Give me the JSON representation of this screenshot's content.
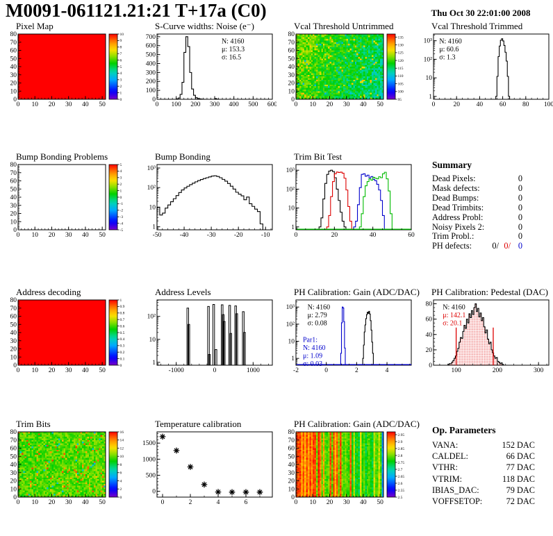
{
  "header": {
    "title": "M0091-061121.21:21 T+17a (C0)",
    "date": "Thu Oct 30 22:01:00 2008"
  },
  "summary": {
    "title": "Summary",
    "rows": [
      {
        "label": "Dead Pixels:",
        "value": "0"
      },
      {
        "label": "Mask defects:",
        "value": "0"
      },
      {
        "label": "Dead Bumps:",
        "value": "0"
      },
      {
        "label": "Dead Trimbits:",
        "value": "0"
      },
      {
        "label": "Address Probl:",
        "value": "0"
      },
      {
        "label": "Noisy Pixels 2:",
        "value": "0"
      },
      {
        "label": "Trim Probl.:",
        "value": "0"
      },
      {
        "label": "PH defects:",
        "values": [
          {
            "text": "0/",
            "color": "#000000"
          },
          {
            "text": "0/",
            "color": "#dd0000"
          },
          {
            "text": "0",
            "color": "#0000cc"
          }
        ]
      }
    ]
  },
  "op_parameters": {
    "title": "Op. Parameters",
    "rows": [
      {
        "label": "VANA:",
        "value": "152 DAC"
      },
      {
        "label": "CALDEL:",
        "value": "66 DAC"
      },
      {
        "label": "VTHR:",
        "value": "77 DAC"
      },
      {
        "label": "VTRIM:",
        "value": "118 DAC"
      },
      {
        "label": "IBIAS_DAC:",
        "value": "79 DAC"
      },
      {
        "label": "VOFFSETOP:",
        "value": "72 DAC"
      }
    ]
  },
  "chart_data": [
    {
      "type": "heatmap",
      "title": "Pixel Map",
      "pattern": {
        "kind": "uniform",
        "value": 1.0
      },
      "x": {
        "min": 0,
        "max": 52,
        "ticks": [
          0,
          10,
          20,
          30,
          40,
          50
        ],
        "minor": 2
      },
      "y": {
        "min": 0,
        "max": 80,
        "ticks": [
          0,
          10,
          20,
          30,
          40,
          50,
          60,
          70,
          80
        ],
        "minor": 2
      },
      "colorbar": {
        "min": 0,
        "max": 10,
        "ticks": [
          0,
          1,
          2,
          3,
          4,
          5,
          6,
          7,
          8,
          9,
          10
        ],
        "labels": [
          "0",
          "1",
          "2",
          "3",
          "4",
          "5",
          "6",
          "7",
          "8",
          "9",
          "10"
        ]
      }
    },
    {
      "type": "hist",
      "title": "S-Curve widths: Noise (e⁻)",
      "scale": "linear",
      "x": {
        "min": 0,
        "max": 600,
        "ticks": [
          0,
          100,
          200,
          300,
          400,
          500,
          600
        ],
        "minor": 20
      },
      "y": {
        "min": 0,
        "max": 730,
        "ticks": [
          0,
          100,
          200,
          300,
          400,
          500,
          600,
          700
        ],
        "minor": 20
      },
      "series": [
        {
          "color": "#000000",
          "start": 0,
          "width": 10,
          "counts": [
            0,
            0,
            0,
            0,
            0,
            0,
            0,
            0,
            0,
            0,
            4,
            14,
            55,
            190,
            525,
            700,
            590,
            300,
            115,
            45,
            18,
            8,
            4,
            2,
            1,
            0,
            0,
            0,
            0,
            0,
            8,
            2,
            0,
            0,
            0,
            0,
            0,
            0,
            0,
            0,
            0,
            0,
            0,
            0,
            0,
            0,
            0,
            0,
            0,
            0,
            0,
            0,
            0,
            0,
            0,
            0,
            0,
            0,
            0,
            0
          ]
        }
      ],
      "stats": [
        {
          "fx": 0.56,
          "fy": 0.06,
          "color": "#000000",
          "lines": [
            "N: 4160",
            "μ: 153.3",
            "σ: 16.5"
          ]
        }
      ]
    },
    {
      "type": "heatmap",
      "title": "Vcal Threshold Untrimmed",
      "pattern": {
        "kind": "noise",
        "seed": 42,
        "mean": 0.6,
        "spread": 0.09,
        "gx": -0.16,
        "gyTop": 0.05,
        "speckleProb": 0.05,
        "speckleLo": 0.7,
        "speckleHi": 0.82,
        "blueProb": 0.02,
        "blueVal": 0.34
      },
      "x": {
        "min": 0,
        "max": 52,
        "ticks": [
          0,
          10,
          20,
          30,
          40,
          50
        ],
        "minor": 2
      },
      "y": {
        "min": 0,
        "max": 80,
        "ticks": [
          0,
          10,
          20,
          30,
          40,
          50,
          60,
          70,
          80
        ],
        "minor": 2
      },
      "colorbar": {
        "min": 95,
        "max": 137,
        "ticks": [
          95,
          100,
          105,
          110,
          115,
          120,
          125,
          130,
          135
        ],
        "labels": [
          "95",
          "100",
          "105",
          "110",
          "115",
          "120",
          "125",
          "130",
          "135"
        ]
      }
    },
    {
      "type": "hist",
      "title": "Vcal Threshold Trimmed",
      "scale": "log",
      "x": {
        "min": 0,
        "max": 100,
        "ticks": [
          0,
          20,
          40,
          60,
          80,
          100
        ],
        "minor": 5
      },
      "y": {
        "min": 0.7,
        "max": 2300,
        "ticks": [
          1,
          10,
          100,
          1000
        ],
        "ticklabels": [
          "1",
          "10",
          "10²",
          "10³"
        ]
      },
      "series": [
        {
          "color": "#000000",
          "start": 54,
          "width": 1,
          "counts": [
            1,
            12,
            140,
            520,
            1050,
            1280,
            980,
            560,
            240,
            80,
            12,
            1
          ]
        }
      ],
      "stats": [
        {
          "fx": 0.05,
          "fy": 0.06,
          "color": "#000000",
          "lines": [
            "N: 4160",
            "μ: 60.6",
            "σ:  1.3"
          ]
        }
      ]
    },
    {
      "type": "heatmap",
      "title": "Bump Bonding Problems",
      "pattern": {
        "kind": "empty"
      },
      "x": {
        "min": 0,
        "max": 52,
        "ticks": [
          0,
          10,
          20,
          30,
          40,
          50
        ],
        "minor": 2
      },
      "y": {
        "min": 0,
        "max": 80,
        "ticks": [
          0,
          10,
          20,
          30,
          40,
          50,
          60,
          70,
          80
        ],
        "minor": 2
      },
      "colorbar": {
        "min": -5,
        "max": 5,
        "ticks": [
          -5,
          -4,
          -3,
          -2,
          -1,
          0,
          1,
          2,
          3,
          4,
          5
        ],
        "labels": [
          "-5",
          "-4",
          "-3",
          "-2",
          "-1",
          "0",
          "1",
          "2",
          "3",
          "4",
          "5"
        ]
      }
    },
    {
      "type": "hist",
      "title": "Bump Bonding",
      "scale": "log",
      "x": {
        "min": -50,
        "max": -7.5,
        "ticks": [
          -50,
          -40,
          -30,
          -20,
          -10
        ],
        "minor": 2
      },
      "y": {
        "min": 0.7,
        "max": 1500,
        "ticks": [
          1,
          10,
          100,
          1000
        ],
        "ticklabels": [
          "1",
          "10",
          "10²",
          "10³"
        ]
      },
      "series": [
        {
          "color": "#000000",
          "start": -50,
          "width": 1,
          "counts": [
            10,
            4,
            5,
            9,
            13,
            19,
            27,
            39,
            56,
            76,
            96,
            117,
            142,
            168,
            197,
            228,
            258,
            288,
            318,
            352,
            388,
            400,
            368,
            318,
            262,
            212,
            162,
            118,
            84,
            58,
            46,
            38,
            24,
            33,
            15,
            11,
            8,
            6,
            1.4,
            0
          ]
        }
      ]
    },
    {
      "type": "hist",
      "title": "Trim Bit Test",
      "scale": "log",
      "x": {
        "min": 0,
        "max": 60,
        "ticks": [
          0,
          20,
          40,
          60
        ],
        "minor": 5
      },
      "y": {
        "min": 0.7,
        "max": 2000,
        "ticks": [
          1,
          10,
          100,
          1000
        ],
        "ticklabels": [
          "1",
          "10",
          "10²",
          "10³"
        ]
      },
      "baseline": "#00bb00",
      "series": [
        {
          "color": "#000000",
          "start": 12,
          "width": 1,
          "counts": [
            1,
            3,
            30,
            200,
            600,
            900,
            1000,
            850,
            400,
            100,
            25,
            6,
            2,
            1
          ]
        },
        {
          "color": "#dd0000",
          "start": 16,
          "width": 1,
          "counts": [
            1,
            4,
            40,
            250,
            650,
            800,
            760,
            790,
            700,
            380,
            90,
            12,
            2
          ]
        },
        {
          "color": "#0000cc",
          "start": 30,
          "width": 1,
          "counts": [
            1,
            2,
            15,
            120,
            600,
            650,
            480,
            550,
            400,
            460,
            330,
            280,
            180,
            90,
            25,
            4
          ]
        },
        {
          "color": "#00bb00",
          "start": 33,
          "width": 1,
          "counts": [
            1,
            5,
            40,
            150,
            250,
            350,
            300,
            420,
            380,
            350,
            450,
            400,
            650,
            780,
            350,
            80,
            5
          ]
        }
      ]
    },
    {
      "type": "heatmap",
      "title": "Address decoding",
      "pattern": {
        "kind": "uniform",
        "value": 1.0
      },
      "x": {
        "min": 0,
        "max": 52,
        "ticks": [
          0,
          10,
          20,
          30,
          40,
          50
        ],
        "minor": 2
      },
      "y": {
        "min": 0,
        "max": 80,
        "ticks": [
          0,
          10,
          20,
          30,
          40,
          50,
          60,
          70,
          80
        ],
        "minor": 2
      },
      "colorbar": {
        "min": 0,
        "max": 1,
        "ticks": [
          0,
          0.1,
          0.2,
          0.3,
          0.4,
          0.5,
          0.6,
          0.7,
          0.8,
          0.9,
          1
        ],
        "labels": [
          "0",
          "0.1",
          "0.2",
          "0.3",
          "0.4",
          "0.5",
          "0.6",
          "0.7",
          "0.8",
          "0.9",
          "1"
        ]
      }
    },
    {
      "type": "spikes",
      "title": "Address Levels",
      "scale": "log",
      "x": {
        "min": -1500,
        "max": 1500,
        "ticks": [
          -1000,
          0,
          1000
        ],
        "minor": 200
      },
      "y": {
        "min": 0.75,
        "max": 520,
        "ticks": [
          1,
          10,
          100
        ],
        "ticklabels": [
          "1",
          "10",
          "10²"
        ]
      },
      "spikes": [
        [
          -700,
          230
        ],
        [
          -672,
          45
        ],
        [
          -160,
          270
        ],
        [
          -138,
          2.2
        ],
        [
          -25,
          330
        ],
        [
          35,
          3.6
        ],
        [
          195,
          320
        ],
        [
          222,
          120
        ],
        [
          250,
          60
        ],
        [
          390,
          300
        ],
        [
          420,
          18
        ],
        [
          545,
          285
        ],
        [
          575,
          130
        ],
        [
          745,
          160
        ],
        [
          775,
          20
        ]
      ]
    },
    {
      "type": "hist",
      "title": "PH Calibration: Gain (ADC/DAC)",
      "scale": "log",
      "x": {
        "min": -2,
        "max": 5.6,
        "ticks": [
          -2,
          0,
          2,
          4
        ],
        "minor": 0.5
      },
      "y": {
        "min": 0.4,
        "max": 2600,
        "ticks": [
          1,
          10,
          100,
          1000
        ],
        "ticklabels": [
          "1",
          "10",
          "10²",
          "10³"
        ]
      },
      "baseline": "#0000cc",
      "series": [
        {
          "color": "#000000",
          "start": 2.4,
          "width": 0.05,
          "counts": [
            1,
            6,
            35,
            90,
            210,
            360,
            500,
            430,
            560,
            390,
            160,
            45,
            9,
            2
          ]
        },
        {
          "color": "#0000cc",
          "start": 0.95,
          "width": 0.05,
          "counts": [
            2,
            120,
            1000,
            880,
            140,
            4
          ]
        }
      ],
      "stats": [
        {
          "fx": 0.1,
          "fy": 0.06,
          "color": "#000000",
          "lines": [
            "N: 4160",
            "μ: 2.79",
            "σ: 0.08"
          ]
        },
        {
          "fx": 0.06,
          "fy": 0.56,
          "color": "#0000cc",
          "lines": [
            "Par1:",
            "N: 4160",
            "μ: 1.09",
            "σ: 0.03"
          ]
        }
      ]
    },
    {
      "type": "hist",
      "title": "PH Calibration: Pedestal (DAC)",
      "scale": "linear",
      "x": {
        "min": 45,
        "max": 325,
        "ticks": [
          100,
          200,
          300
        ],
        "minor": 20
      },
      "y": {
        "min": 0,
        "max": 85,
        "ticks": [
          0,
          20,
          40,
          60,
          80
        ],
        "minor": 5
      },
      "fill": "dots",
      "vlines": [
        {
          "x": 100,
          "y": 49,
          "color": "#dd0000"
        },
        {
          "x": 190,
          "y": 49,
          "color": "#dd0000"
        }
      ],
      "series": [
        {
          "color": "#000000",
          "start": 80,
          "width": 3,
          "counts": [
            1,
            2,
            2,
            4,
            6,
            9,
            12,
            18,
            22,
            30,
            36,
            35,
            44,
            52,
            48,
            60,
            55,
            67,
            62,
            71,
            66,
            75,
            80,
            70,
            74,
            63,
            68,
            58,
            62,
            50,
            42,
            46,
            34,
            28,
            30,
            20,
            16,
            12,
            9,
            10,
            5,
            4,
            2,
            3,
            1
          ]
        }
      ],
      "stats": [
        {
          "fx": 0.08,
          "fy": 0.06,
          "lines": [
            {
              "text": "N: 4160",
              "color": "#000000"
            },
            {
              "text": "μ: 142.1",
              "color": "#dd0000"
            },
            {
              "text": "σ: 20.1",
              "color": "#dd0000"
            }
          ]
        }
      ]
    },
    {
      "type": "heatmap",
      "title": "Trim Bits",
      "pattern": {
        "kind": "noise",
        "seed": 77,
        "mean": 0.6,
        "spread": 0.07,
        "gx": 0.02,
        "gyTop": 0,
        "speckleProb": 0.05,
        "speckleLo": 0.78,
        "speckleHi": 0.95,
        "blueProb": 0.015,
        "blueVal": 0.36
      },
      "x": {
        "min": 0,
        "max": 52,
        "ticks": [
          0,
          10,
          20,
          30,
          40,
          50
        ],
        "minor": 2
      },
      "y": {
        "min": 0,
        "max": 80,
        "ticks": [
          0,
          10,
          20,
          30,
          40,
          50,
          60,
          70,
          80
        ],
        "minor": 2
      },
      "colorbar": {
        "min": 0,
        "max": 16,
        "ticks": [
          0,
          2,
          4,
          6,
          8,
          10,
          12,
          14,
          16
        ],
        "labels": [
          "0",
          "2",
          "4",
          "6",
          "8",
          "10",
          "12",
          "14",
          "16"
        ]
      }
    },
    {
      "type": "scatter",
      "title": "Temperature calibration",
      "x": {
        "min": -0.4,
        "max": 7.9,
        "ticks": [
          0,
          2,
          4,
          6
        ],
        "minor": 1
      },
      "y": {
        "min": -180,
        "max": 1850,
        "ticks": [
          0,
          500,
          1000,
          1500
        ],
        "minor": 100
      },
      "points": [
        [
          0,
          1700
        ],
        [
          1,
          1270
        ],
        [
          2,
          760
        ],
        [
          3,
          210
        ],
        [
          4,
          -20
        ],
        [
          5,
          -25
        ],
        [
          6,
          -25
        ],
        [
          7,
          -25
        ]
      ]
    },
    {
      "type": "heatmap",
      "title": "PH Calibration: Gain (ADC/DAC)",
      "pattern": {
        "kind": "stripes",
        "seed": 99,
        "splitFrac": 0.62,
        "lastColVal": 0.28
      },
      "x": {
        "min": 0,
        "max": 52,
        "ticks": [
          0,
          10,
          20,
          30,
          40,
          50
        ],
        "minor": 2
      },
      "y": {
        "min": 0,
        "max": 80,
        "ticks": [
          0,
          10,
          20,
          30,
          40,
          50,
          60,
          70,
          80
        ],
        "minor": 2
      },
      "colorbar": {
        "min": 2.5,
        "max": 2.97,
        "ticks": [
          2.5,
          2.55,
          2.6,
          2.65,
          2.7,
          2.75,
          2.8,
          2.85,
          2.9,
          2.95
        ],
        "labels": [
          "2.5",
          "2.55",
          "2.6",
          "2.65",
          "2.7",
          "2.75",
          "2.8",
          "2.85",
          "2.9",
          "2.95"
        ]
      }
    }
  ]
}
